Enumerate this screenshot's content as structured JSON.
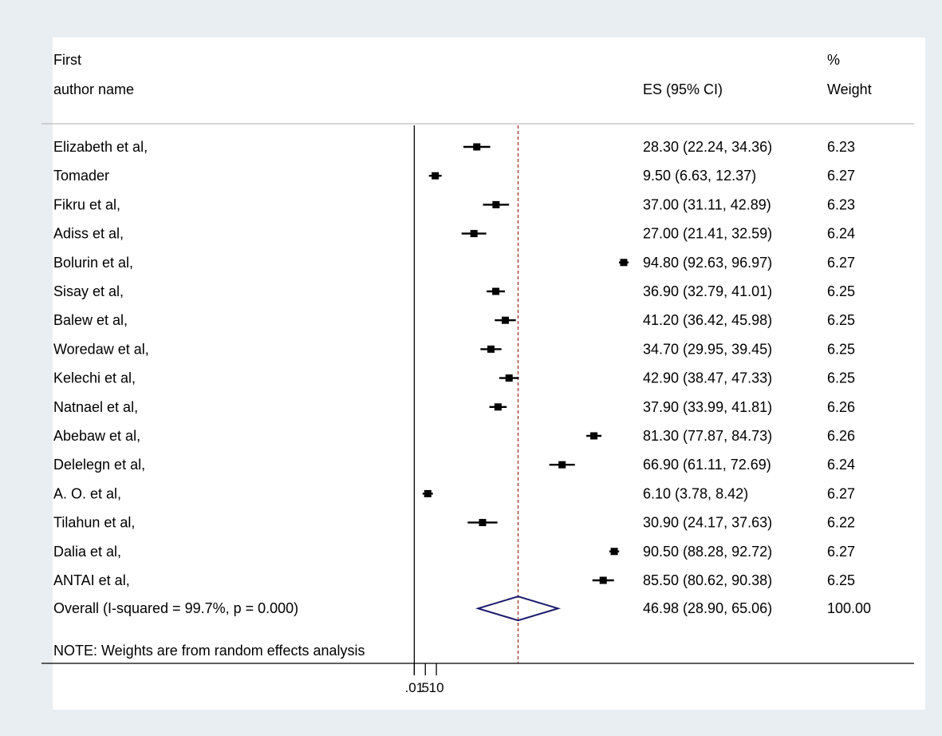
{
  "chart_data": {
    "type": "forest",
    "headers": {
      "study_line1": "First",
      "study_line2": "author name",
      "es": "ES (95% CI)",
      "weight_line1": "%",
      "weight_line2": "Weight"
    },
    "studies": [
      {
        "name": "Elizabeth et al,",
        "es": 28.3,
        "lo": 22.24,
        "hi": 34.36,
        "ci_text": "28.30 (22.24, 34.36)",
        "weight": "6.23"
      },
      {
        "name": "Tomader",
        "es": 9.5,
        "lo": 6.63,
        "hi": 12.37,
        "ci_text": "9.50 (6.63, 12.37)",
        "weight": "6.27"
      },
      {
        "name": "Fikru et al,",
        "es": 37.0,
        "lo": 31.11,
        "hi": 42.89,
        "ci_text": "37.00 (31.11, 42.89)",
        "weight": "6.23"
      },
      {
        "name": "Adiss et al,",
        "es": 27.0,
        "lo": 21.41,
        "hi": 32.59,
        "ci_text": "27.00 (21.41, 32.59)",
        "weight": "6.24"
      },
      {
        "name": "Bolurin et al,",
        "es": 94.8,
        "lo": 92.63,
        "hi": 96.97,
        "ci_text": "94.80 (92.63, 96.97)",
        "weight": "6.27"
      },
      {
        "name": "Sisay et al,",
        "es": 36.9,
        "lo": 32.79,
        "hi": 41.01,
        "ci_text": "36.90 (32.79, 41.01)",
        "weight": "6.25"
      },
      {
        "name": "Balew et al,",
        "es": 41.2,
        "lo": 36.42,
        "hi": 45.98,
        "ci_text": "41.20 (36.42, 45.98)",
        "weight": "6.25"
      },
      {
        "name": "Woredaw et al,",
        "es": 34.7,
        "lo": 29.95,
        "hi": 39.45,
        "ci_text": "34.70 (29.95, 39.45)",
        "weight": "6.25"
      },
      {
        "name": "Kelechi et al,",
        "es": 42.9,
        "lo": 38.47,
        "hi": 47.33,
        "ci_text": "42.90 (38.47, 47.33)",
        "weight": "6.25"
      },
      {
        "name": "Natnael et al,",
        "es": 37.9,
        "lo": 33.99,
        "hi": 41.81,
        "ci_text": "37.90 (33.99, 41.81)",
        "weight": "6.26"
      },
      {
        "name": "Abebaw et al,",
        "es": 81.3,
        "lo": 77.87,
        "hi": 84.73,
        "ci_text": "81.30 (77.87, 84.73)",
        "weight": "6.26"
      },
      {
        "name": "Delelegn et al,",
        "es": 66.9,
        "lo": 61.11,
        "hi": 72.69,
        "ci_text": "66.90 (61.11, 72.69)",
        "weight": "6.24"
      },
      {
        "name": "A. O. et al,",
        "es": 6.1,
        "lo": 3.78,
        "hi": 8.42,
        "ci_text": "6.10 (3.78, 8.42)",
        "weight": "6.27"
      },
      {
        "name": "Tilahun et al,",
        "es": 30.9,
        "lo": 24.17,
        "hi": 37.63,
        "ci_text": "30.90 (24.17, 37.63)",
        "weight": "6.22"
      },
      {
        "name": "Dalia et al,",
        "es": 90.5,
        "lo": 88.28,
        "hi": 92.72,
        "ci_text": "90.50 (88.28, 92.72)",
        "weight": "6.27"
      },
      {
        "name": "ANTAI et al,",
        "es": 85.5,
        "lo": 80.62,
        "hi": 90.38,
        "ci_text": "85.50 (80.62, 90.38)",
        "weight": "6.25"
      }
    ],
    "overall": {
      "label": "Overall  (I-squared = 99.7%, p = 0.000)",
      "es": 46.98,
      "lo": 28.9,
      "hi": 65.06,
      "ci_text": "46.98 (28.90, 65.06)",
      "weight": "100.00"
    },
    "note": "NOTE: Weights are from random effects analysis",
    "x_ticks": [
      ".01",
      "5",
      "10"
    ],
    "x_tick_values": [
      0,
      0.01,
      5,
      10
    ],
    "xlim": [
      -0.5,
      96.97
    ],
    "null_line": 0,
    "reference_line": 46.98,
    "colors": {
      "marker": "#000000",
      "overall_diamond": "#1a1a6e",
      "reference_line": "#a0342a",
      "background": "#e9eef2",
      "plot_area": "#ffffff"
    }
  }
}
